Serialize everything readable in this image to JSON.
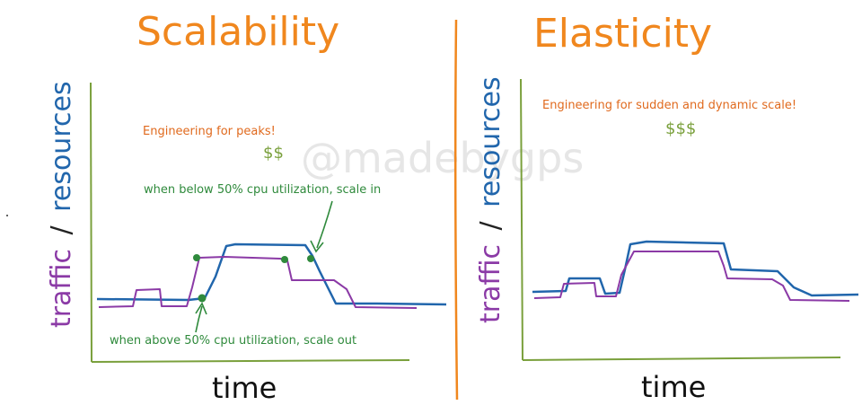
{
  "watermark": "@madebygps",
  "colors": {
    "title": "#f0871e",
    "divider": "#f0871e",
    "axis": "#7aa03c",
    "traffic": "#8b3aa6",
    "resources": "#2166ac",
    "peak_note": "#e06a1e",
    "money": "#7aa03c",
    "annotation": "#2f8a3c"
  },
  "scalability": {
    "title": "Scalability",
    "x_label": "time",
    "y_label_traffic": "traffic",
    "y_label_slash": "/",
    "y_label_resources": "resources",
    "note": "Engineering for peaks!",
    "cost": "$$",
    "scale_in_note": "when below 50% cpu utilization, scale in",
    "scale_out_note": "when above 50% cpu utilization, scale out"
  },
  "elasticity": {
    "title": "Elasticity",
    "x_label": "time",
    "y_label_traffic": "traffic",
    "y_label_slash": "/",
    "y_label_resources": "resources",
    "note": "Engineering for sudden and dynamic scale!",
    "cost": "$$$"
  }
}
